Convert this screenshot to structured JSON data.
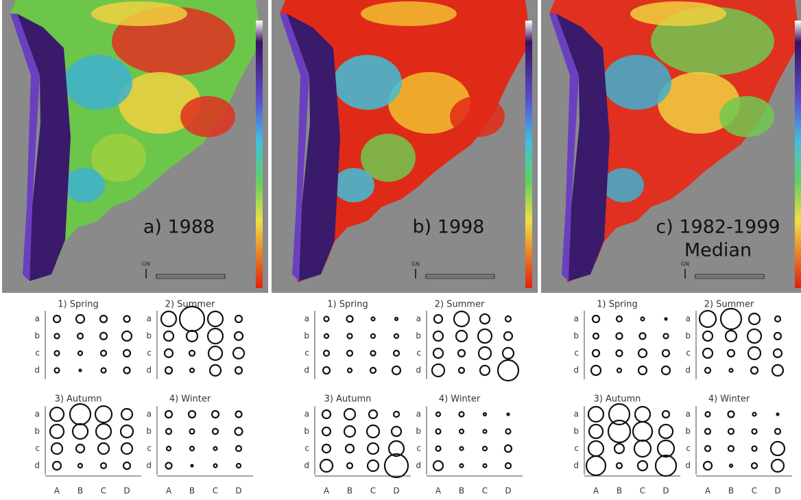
{
  "row_labels": [
    "a",
    "b",
    "c",
    "d"
  ],
  "col_labels": [
    "A",
    "B",
    "C",
    "D"
  ],
  "map_marker": "GN",
  "panels": [
    {
      "label_lines": [
        "a) 1988"
      ],
      "grids": [
        {
          "title": "1) Spring",
          "values": [
            [
              10,
              12,
              10,
              9
            ],
            [
              7,
              8,
              10,
              14
            ],
            [
              7,
              6,
              8,
              10
            ],
            [
              7,
              3,
              7,
              9
            ]
          ]
        },
        {
          "title": "2) Summer",
          "values": [
            [
              22,
              36,
              22,
              10
            ],
            [
              14,
              16,
              22,
              12
            ],
            [
              12,
              8,
              20,
              16
            ],
            [
              10,
              6,
              16,
              10
            ]
          ]
        },
        {
          "title": "3) Autumn",
          "values": [
            [
              20,
              30,
              24,
              16
            ],
            [
              20,
              22,
              22,
              18
            ],
            [
              16,
              12,
              16,
              16
            ],
            [
              12,
              6,
              8,
              10
            ]
          ]
        },
        {
          "title": "4) Winter",
          "values": [
            [
              10,
              10,
              10,
              9
            ],
            [
              8,
              7,
              8,
              11
            ],
            [
              6,
              6,
              5,
              8
            ],
            [
              9,
              3,
              5,
              6
            ]
          ]
        }
      ]
    },
    {
      "label_lines": [
        "b) 1998"
      ],
      "grids": [
        {
          "title": "1) Spring",
          "values": [
            [
              7,
              9,
              5,
              4
            ],
            [
              6,
              7,
              6,
              6
            ],
            [
              8,
              8,
              7,
              8
            ],
            [
              10,
              6,
              8,
              12
            ]
          ]
        },
        {
          "title": "2) Summer",
          "values": [
            [
              12,
              22,
              14,
              8
            ],
            [
              14,
              16,
              20,
              12
            ],
            [
              14,
              10,
              18,
              16
            ],
            [
              18,
              8,
              14,
              30
            ]
          ]
        },
        {
          "title": "3) Autumn",
          "values": [
            [
              12,
              16,
              12,
              8
            ],
            [
              12,
              16,
              18,
              14
            ],
            [
              12,
              12,
              16,
              22
            ],
            [
              18,
              8,
              16,
              34
            ]
          ]
        },
        {
          "title": "4) Winter",
          "values": [
            [
              6,
              7,
              4,
              3
            ],
            [
              7,
              6,
              5,
              7
            ],
            [
              7,
              5,
              6,
              10
            ],
            [
              14,
              5,
              5,
              8
            ]
          ]
        }
      ]
    },
    {
      "label_lines": [
        "c) 1982-1999",
        "Median"
      ],
      "grids": [
        {
          "title": "1) Spring",
          "values": [
            [
              10,
              8,
              5,
              3
            ],
            [
              8,
              9,
              9,
              7
            ],
            [
              10,
              9,
              12,
              10
            ],
            [
              14,
              6,
              12,
              12
            ]
          ]
        },
        {
          "title": "2) Summer",
          "values": [
            [
              24,
              30,
              16,
              8
            ],
            [
              14,
              16,
              20,
              10
            ],
            [
              14,
              10,
              18,
              12
            ],
            [
              8,
              5,
              10,
              16
            ]
          ]
        },
        {
          "title": "3) Autumn",
          "values": [
            [
              22,
              30,
              22,
              10
            ],
            [
              20,
              32,
              28,
              20
            ],
            [
              22,
              14,
              24,
              24
            ],
            [
              28,
              8,
              14,
              30
            ]
          ]
        },
        {
          "title": "4) Winter",
          "values": [
            [
              7,
              9,
              5,
              3
            ],
            [
              8,
              8,
              7,
              8
            ],
            [
              8,
              8,
              7,
              20
            ],
            [
              12,
              4,
              8,
              18
            ]
          ]
        }
      ]
    }
  ]
}
